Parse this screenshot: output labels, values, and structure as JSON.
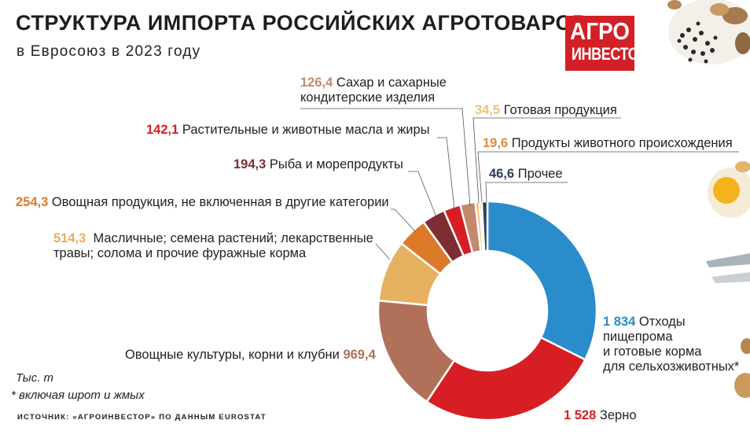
{
  "header": {
    "title": "СТРУКТУРА ИМПОРТА РОССИЙСКИХ АГРОТОВАРОВ",
    "subtitle": "в Евросоюз в 2023 году",
    "logo_line1": "АГРО",
    "logo_line2": "ИНВЕСТОР"
  },
  "chart_data": {
    "type": "pie",
    "variant": "donut",
    "unit": "Тыс. т",
    "slices": [
      {
        "value_label": "1 834",
        "value": 1834,
        "label": "Отходы пищепрома и готовые корма для сельхозживотных*",
        "color": "#2a8ccb"
      },
      {
        "value_label": "1 528",
        "value": 1528,
        "label": "Зерно",
        "color": "#d71e25"
      },
      {
        "value_label": "969,4",
        "value": 969.4,
        "label": "Овощные культуры, корни и клубни",
        "color": "#b0705a"
      },
      {
        "value_label": "514,3",
        "value": 514.3,
        "label": "Масличные; семена растений; лекарственные травы; солома и прочие фуражные корма",
        "color": "#e6b160"
      },
      {
        "value_label": "254,3",
        "value": 254.3,
        "label": "Овощная продукция, не включенная в другие категории",
        "color": "#dd7a2a"
      },
      {
        "value_label": "194,3",
        "value": 194.3,
        "label": "Рыба и морепродукты",
        "color": "#7d2d33"
      },
      {
        "value_label": "142,1",
        "value": 142.1,
        "label": "Растительные и животные масла и жиры",
        "color": "#d71e25"
      },
      {
        "value_label": "126,4",
        "value": 126.4,
        "label": "Сахар и сахарные кондитерские изделия",
        "color": "#c4886e"
      },
      {
        "value_label": "34,5",
        "value": 34.5,
        "label": "Готовая продукция",
        "color": "#eec27a"
      },
      {
        "value_label": "19,6",
        "value": 19.6,
        "label": "Продукты животного происхождения",
        "color": "#e38a3a"
      },
      {
        "value_label": "46,6",
        "value": 46.6,
        "label": "Прочее",
        "color": "#2c3e5c"
      }
    ]
  },
  "labels": {
    "otkhody": {
      "value": "1 834",
      "text1": "Отходы",
      "text2": "пищепрома",
      "text3": "и готовые корма",
      "text4": "для сельхозживотных*"
    },
    "zerno": {
      "value": "1 528",
      "text": "Зерно"
    },
    "ovoshchi": {
      "value": "969,4",
      "text": "Овощные культуры, корни и клубни"
    },
    "maslichnye": {
      "value": "514,3",
      "text1": "Масличные; семена растений; лекарственные",
      "text2": "травы; солома и прочие фуражные корма"
    },
    "ovoshnaya": {
      "value": "254,3",
      "text": "Овощная продукция, не включенная в другие категории"
    },
    "ryba": {
      "value": "194,3",
      "text": "Рыба и морепродукты"
    },
    "masla": {
      "value": "142,1",
      "text": "Растительные и животные масла и жиры"
    },
    "sakhar": {
      "value": "126,4",
      "text1": "Сахар и сахарные",
      "text2": "кондитерские изделия"
    },
    "gotovaya": {
      "value": "34,5",
      "text": "Готовая продукция"
    },
    "zhivotnye": {
      "value": "19,6",
      "text": "Продукты животного происхождения"
    },
    "prochee": {
      "value": "46,6",
      "text": "Прочее"
    }
  },
  "notes": {
    "unit": "Тыс. т",
    "footnote": "* включая шрот и жмых",
    "source": "ИСТОЧНИК: «АГРОИНВЕСТОР» ПО ДАННЫМ EUROSTAT"
  }
}
